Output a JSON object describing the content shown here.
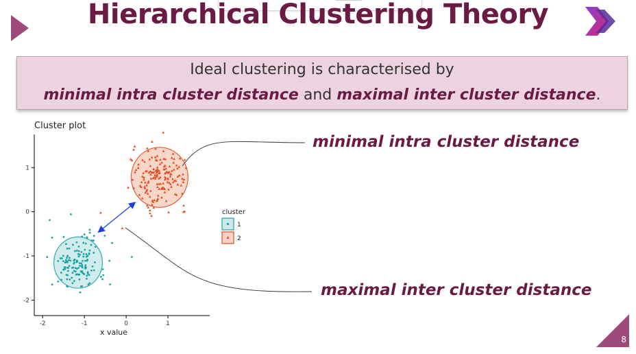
{
  "title": "Hierarchical Clustering Theory",
  "callout": {
    "line1": "Ideal clustering is characterised by",
    "part_a": "minimal intra cluster distance",
    "connector": " and ",
    "part_b": "maximal inter cluster distance",
    "end": "."
  },
  "labels": {
    "intra": "minimal intra cluster distance",
    "inter": "maximal inter cluster distance"
  },
  "page_number": "8",
  "chart_data": {
    "type": "scatter",
    "title": "Cluster plot",
    "xlabel": "x value",
    "ylabel": "",
    "xlim": [
      -2.2,
      2.0
    ],
    "ylim": [
      -2.35,
      1.75
    ],
    "x_ticks": [
      -2,
      -1,
      0,
      1
    ],
    "y_ticks": [
      1,
      0,
      -1,
      -2
    ],
    "legend": {
      "title": "cluster",
      "placement": "right"
    },
    "series": [
      {
        "name": "1",
        "marker": "circle",
        "color": "#1aa3a3",
        "fill": "#cdeaea",
        "center": [
          -1.15,
          -1.15
        ],
        "radius": 0.58,
        "spread": 0.33,
        "n": 150
      },
      {
        "name": "2",
        "marker": "triangle",
        "color": "#e8491d",
        "fill": "#f8d3c6",
        "center": [
          0.8,
          0.78
        ],
        "radius": 0.68,
        "spread": 0.33,
        "n": 170
      }
    ]
  },
  "colors": {
    "accent": "#6b1a44",
    "callout_bg": "#ecd3df",
    "arrow": "#1f3de0"
  }
}
